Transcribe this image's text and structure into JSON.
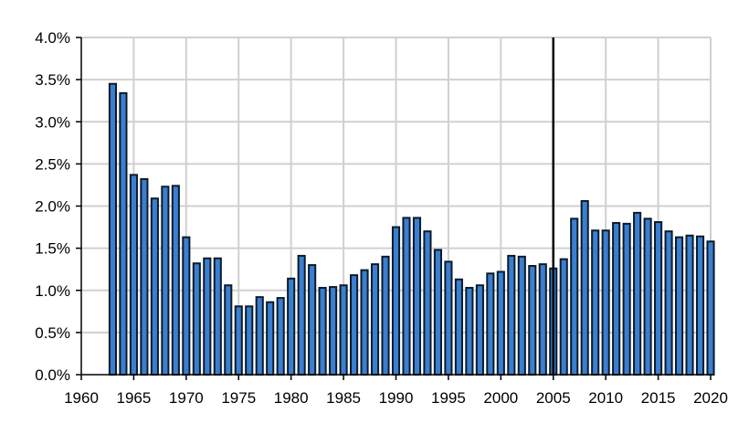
{
  "chart_data": {
    "type": "bar",
    "title": "",
    "xlabel": "",
    "ylabel": "",
    "x": [
      1963,
      1964,
      1965,
      1966,
      1967,
      1968,
      1969,
      1970,
      1971,
      1972,
      1973,
      1974,
      1975,
      1976,
      1977,
      1978,
      1979,
      1980,
      1981,
      1982,
      1983,
      1984,
      1985,
      1986,
      1987,
      1988,
      1989,
      1990,
      1991,
      1992,
      1993,
      1994,
      1995,
      1996,
      1997,
      1998,
      1999,
      2000,
      2001,
      2002,
      2003,
      2004,
      2005,
      2006,
      2007,
      2008,
      2009,
      2010,
      2011,
      2012,
      2013,
      2014,
      2015,
      2016,
      2017,
      2018,
      2019,
      2020
    ],
    "values": [
      3.45,
      3.34,
      2.37,
      2.32,
      2.09,
      2.23,
      2.24,
      1.63,
      1.32,
      1.38,
      1.38,
      1.06,
      0.81,
      0.81,
      0.92,
      0.86,
      0.91,
      1.14,
      1.41,
      1.3,
      1.03,
      1.04,
      1.06,
      1.18,
      1.24,
      1.31,
      1.4,
      1.75,
      1.86,
      1.86,
      1.7,
      1.48,
      1.34,
      1.13,
      1.03,
      1.06,
      1.2,
      1.22,
      1.41,
      1.4,
      1.29,
      1.31,
      1.26,
      1.37,
      1.85,
      2.06,
      1.71,
      1.71,
      1.8,
      1.79,
      1.92,
      1.85,
      1.81,
      1.7,
      1.63,
      1.65,
      1.64,
      1.58
    ],
    "value_format": "percent",
    "xlim": [
      1960,
      2020
    ],
    "ylim": [
      0,
      4.0
    ],
    "x_ticks": [
      "1960",
      "1965",
      "1970",
      "1975",
      "1980",
      "1985",
      "1990",
      "1995",
      "2000",
      "2005",
      "2010",
      "2015",
      "2020"
    ],
    "y_ticks": [
      "0.0%",
      "0.5%",
      "1.0%",
      "1.5%",
      "2.0%",
      "2.5%",
      "3.0%",
      "3.5%",
      "4.0%"
    ],
    "grid": true,
    "legend": "none",
    "reference_line_x": 2005,
    "bar_color": "#3a7fd0",
    "bar_edge_color": "#0d1b2a"
  }
}
